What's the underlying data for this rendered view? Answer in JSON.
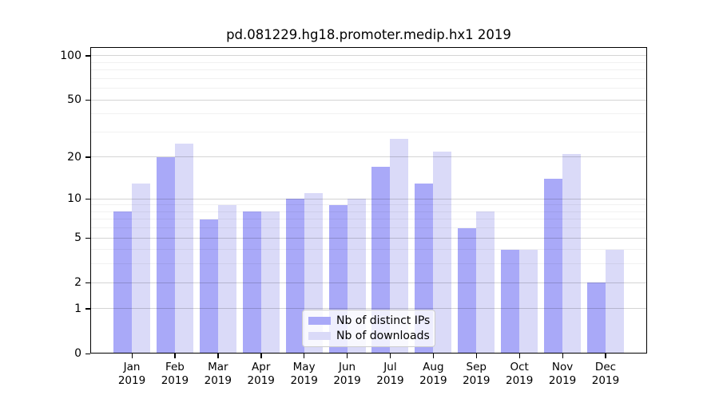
{
  "chart_data": {
    "type": "bar",
    "title": "pd.081229.hg18.promoter.medip.hx1 2019",
    "categories": [
      "Jan",
      "Feb",
      "Mar",
      "Apr",
      "May",
      "Jun",
      "Jul",
      "Aug",
      "Sep",
      "Oct",
      "Nov",
      "Dec"
    ],
    "category_year": "2019",
    "series": [
      {
        "name": "Nb of distinct IPs",
        "color": "#A9A9F8",
        "values": [
          8,
          20,
          7,
          8,
          10,
          9,
          17,
          13,
          6,
          4,
          14,
          2
        ]
      },
      {
        "name": "Nb of downloads",
        "color": "#DADAF8",
        "values": [
          13,
          25,
          9,
          8,
          11,
          10,
          27,
          22,
          8,
          4,
          21,
          4
        ]
      }
    ],
    "xlabel": "",
    "ylabel": "",
    "y_scale": "log10(1+x)",
    "ylim": [
      0,
      114.6
    ],
    "y_ticks": [
      0,
      1,
      2,
      5,
      10,
      20,
      50,
      100
    ],
    "y_minor_gridlines": [
      3,
      4,
      6,
      7,
      8,
      9,
      30,
      40,
      60,
      70,
      80,
      90
    ],
    "grid": true,
    "legend": {
      "entries": [
        "Nb of distinct IPs",
        "Nb of downloads"
      ],
      "position": "inside-lower-center"
    }
  },
  "styles": {
    "background": "#ffffff",
    "axis_color": "#000000",
    "grid_major_color": "rgba(0,0,0,0.17)",
    "grid_minor_color": "rgba(0,0,0,0.055)",
    "legend_border_color": "#cccccc",
    "bar_ips_color": "#A9A9F8",
    "bar_downloads_color": "#DADAF8"
  }
}
